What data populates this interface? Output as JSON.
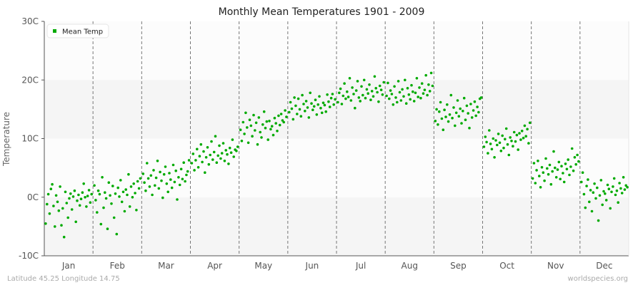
{
  "chart_data": {
    "type": "scatter",
    "title": "Monthly Mean Temperatures 1901 - 2009",
    "ylabel": "Temperature",
    "xlabel": "",
    "ylim": [
      -10,
      30
    ],
    "yticks": [
      "-10C",
      "0C",
      "10C",
      "20C",
      "30C"
    ],
    "ytick_values": [
      -10,
      0,
      10,
      20,
      30
    ],
    "categories": [
      "Jan",
      "Feb",
      "Mar",
      "Apr",
      "May",
      "Jun",
      "Jul",
      "Aug",
      "Sep",
      "Oct",
      "Nov",
      "Dec"
    ],
    "grid": "horizontal bands, dashed month separators",
    "legend": {
      "position": "top-left",
      "label": "Mean Temp"
    },
    "series": [
      {
        "name": "Mean Temp",
        "color": "#00aa00",
        "values_by_month": [
          [
            -4.5,
            -1.2,
            0.5,
            -2.8,
            1.4,
            2.2,
            -1.5,
            -5.0,
            0.3,
            -0.8,
            -2.3,
            1.8,
            -4.8,
            -1.9,
            -6.8,
            0.9,
            -1.0,
            -3.5,
            -0.2,
            0.6,
            -2.1,
            0.1,
            1.1,
            -4.2,
            -0.6,
            0.4,
            -1.4,
            -0.3,
            0.8,
            2.3,
            0.0,
            -1.6,
            0.2,
            1.2,
            -0.9,
            0.5
          ],
          [
            2.0,
            -0.5,
            -2.6,
            1.1,
            0.5,
            -4.6,
            3.4,
            -1.8,
            0.8,
            -0.2,
            -5.4,
            2.5,
            0.3,
            -1.1,
            1.9,
            -3.5,
            0.6,
            -6.3,
            1.6,
            0.1,
            2.9,
            -0.8,
            0.9,
            -2.4,
            1.3,
            0.4,
            3.9,
            -1.6,
            1.8,
            0.0,
            2.3,
            0.7,
            -2.2,
            2.7,
            1.5,
            3.2
          ],
          [
            4.0,
            2.5,
            1.1,
            5.8,
            3.2,
            1.8,
            3.7,
            0.4,
            4.6,
            2.0,
            3.3,
            6.2,
            1.5,
            4.3,
            2.8,
            -0.1,
            3.9,
            5.2,
            2.3,
            0.9,
            4.1,
            3.0,
            1.6,
            5.5,
            2.6,
            4.5,
            -0.4,
            3.4,
            2.1,
            4.8,
            3.1,
            5.9,
            2.7,
            3.8,
            4.4,
            6.3
          ],
          [
            5.8,
            7.4,
            4.6,
            6.3,
            8.2,
            5.1,
            7.0,
            9.0,
            6.0,
            7.8,
            4.2,
            6.8,
            8.5,
            5.6,
            7.2,
            9.5,
            6.4,
            7.7,
            10.4,
            5.9,
            7.1,
            8.8,
            6.6,
            7.5,
            9.2,
            6.2,
            8.0,
            7.3,
            5.7,
            8.4,
            7.6,
            9.8,
            6.9,
            8.1,
            7.9,
            8.6
          ],
          [
            11.5,
            9.6,
            12.8,
            10.8,
            14.4,
            11.9,
            9.3,
            13.2,
            12.2,
            10.4,
            14.0,
            11.4,
            12.7,
            9.0,
            13.6,
            11.1,
            10.2,
            12.4,
            14.6,
            11.8,
            12.9,
            9.8,
            13.0,
            11.6,
            12.1,
            10.6,
            13.5,
            12.6,
            11.3,
            13.9,
            12.3,
            14.2,
            13.1,
            12.8,
            14.8,
            13.7
          ],
          [
            14.5,
            16.2,
            15.1,
            13.3,
            17.0,
            15.6,
            14.2,
            16.8,
            15.0,
            13.8,
            17.4,
            15.9,
            14.7,
            16.4,
            15.3,
            13.6,
            17.8,
            16.0,
            14.9,
            15.5,
            16.6,
            14.1,
            15.8,
            17.2,
            15.2,
            14.4,
            16.1,
            15.7,
            14.6,
            17.5,
            16.3,
            15.4,
            16.9,
            17.6,
            15.8,
            16.7
          ],
          [
            16.2,
            17.8,
            18.5,
            15.9,
            17.3,
            19.4,
            16.8,
            18.0,
            17.1,
            20.3,
            16.5,
            18.7,
            17.6,
            15.2,
            18.2,
            19.8,
            17.0,
            16.4,
            18.9,
            17.4,
            20.0,
            16.9,
            18.4,
            17.7,
            19.2,
            16.6,
            18.1,
            17.2,
            20.6,
            18.6,
            17.9,
            16.3,
            19.0,
            18.3,
            17.5,
            19.6
          ],
          [
            17.3,
            19.5,
            16.8,
            18.2,
            17.6,
            15.8,
            18.9,
            17.0,
            16.2,
            19.8,
            17.9,
            16.5,
            18.4,
            17.2,
            20.0,
            16.0,
            18.6,
            17.5,
            16.7,
            19.1,
            18.0,
            16.4,
            17.8,
            20.3,
            17.1,
            18.7,
            16.9,
            19.4,
            17.7,
            18.3,
            20.8,
            17.4,
            19.2,
            18.1,
            21.2,
            19.0
          ],
          [
            13.0,
            15.0,
            12.4,
            14.6,
            16.2,
            13.4,
            11.5,
            14.9,
            13.7,
            15.8,
            12.9,
            14.1,
            17.4,
            13.5,
            15.3,
            12.2,
            14.4,
            16.5,
            13.8,
            15.1,
            12.6,
            14.7,
            16.9,
            13.2,
            15.6,
            14.3,
            11.8,
            15.9,
            13.6,
            14.8,
            16.3,
            13.9,
            15.4,
            14.5,
            16.8,
            17.0
          ],
          [
            8.6,
            10.3,
            9.4,
            7.5,
            11.4,
            9.1,
            8.2,
            10.0,
            6.8,
            9.7,
            8.9,
            10.8,
            9.3,
            7.9,
            10.5,
            8.4,
            9.9,
            11.7,
            9.0,
            7.2,
            10.2,
            9.6,
            8.7,
            11.1,
            9.5,
            10.6,
            8.1,
            10.9,
            9.8,
            11.3,
            10.1,
            12.2,
            10.4,
            11.6,
            9.2,
            12.7
          ],
          [
            3.2,
            5.8,
            2.4,
            4.6,
            6.2,
            3.6,
            1.7,
            5.1,
            4.2,
            2.8,
            6.6,
            4.9,
            3.9,
            5.5,
            2.2,
            4.4,
            7.8,
            5.0,
            3.4,
            4.7,
            6.0,
            3.1,
            5.3,
            4.1,
            2.6,
            5.7,
            4.8,
            6.4,
            3.8,
            5.2,
            8.3,
            4.5,
            6.8,
            5.6,
            7.2,
            6.1
          ],
          [
            2.6,
            4.2,
            0.5,
            -1.8,
            1.9,
            3.0,
            -0.8,
            1.2,
            -2.4,
            0.8,
            2.3,
            -0.2,
            1.6,
            -4.0,
            0.3,
            2.9,
            -1.3,
            1.0,
            0.6,
            -0.5,
            2.1,
            1.4,
            -1.9,
            0.9,
            1.8,
            3.2,
            0.4,
            1.1,
            -0.9,
            2.4,
            1.5,
            0.7,
            3.4,
            1.3,
            2.0,
            1.7
          ]
        ]
      }
    ]
  },
  "footer": {
    "left": "Latitude 45.25 Longitude 14.75",
    "right": "worldspecies.org"
  }
}
